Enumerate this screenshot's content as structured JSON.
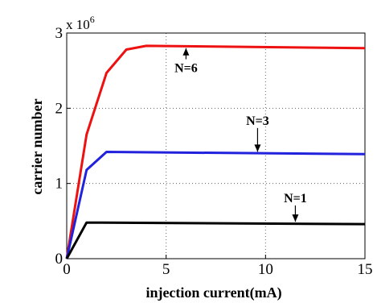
{
  "chart_data": {
    "type": "line",
    "title": "",
    "xlabel": "injection current(mA)",
    "ylabel": "carrier number",
    "xlim": [
      0,
      15
    ],
    "ylim": [
      0,
      3
    ],
    "y_scale_prefix": "x 10",
    "y_scale_exponent": "6",
    "xticks": [
      0,
      5,
      10,
      15
    ],
    "yticks": [
      0,
      1,
      2,
      3
    ],
    "grid": true,
    "series": [
      {
        "color": "#ee1111",
        "x": [
          0,
          1,
          2,
          3,
          4,
          15
        ],
        "y": [
          0,
          1.65,
          2.47,
          2.78,
          2.83,
          2.8
        ]
      },
      {
        "color": "#2222dd",
        "x": [
          0,
          1,
          2,
          15
        ],
        "y": [
          0,
          1.18,
          1.42,
          1.39
        ]
      },
      {
        "color": "#000000",
        "x": [
          0,
          1,
          15
        ],
        "y": [
          0,
          0.48,
          0.46
        ]
      }
    ],
    "annotations": [
      {
        "text": "N=6",
        "tx": 6.0,
        "ty": 2.48,
        "ax": 6.0,
        "ay": 2.82
      },
      {
        "text": "N=3",
        "tx": 9.6,
        "ty": 1.78,
        "ax": 9.6,
        "ay": 1.4
      },
      {
        "text": "N=1",
        "tx": 11.5,
        "ty": 0.75,
        "ax": 11.5,
        "ay": 0.47
      }
    ]
  }
}
